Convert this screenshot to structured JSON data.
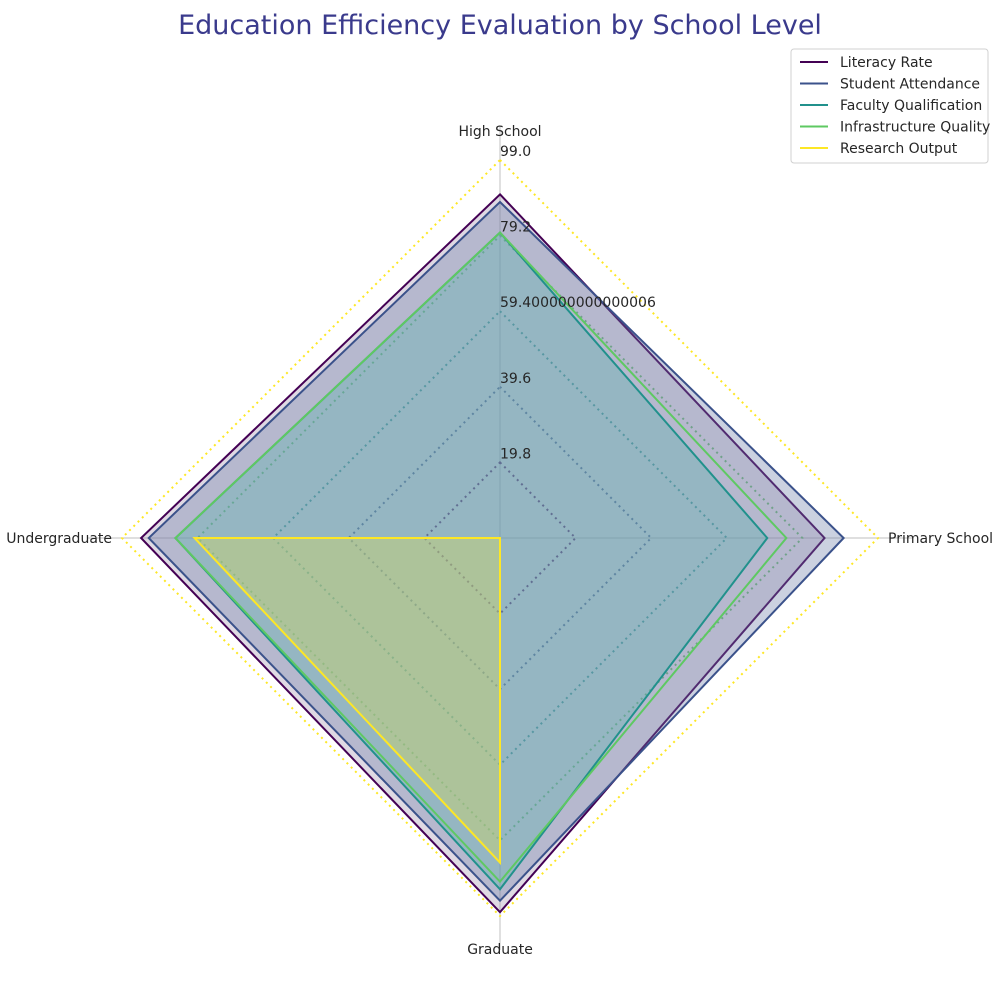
{
  "chart_data": {
    "type": "radar",
    "title": "Education Efficiency Evaluation by School Level",
    "axes": [
      "High School",
      "Primary School",
      "Graduate",
      "Undergraduate"
    ],
    "rlim": [
      0,
      99.0
    ],
    "tick_values": [
      19.8,
      39.6,
      59.4,
      79.2,
      99.0
    ],
    "tick_labels": [
      "19.8",
      "39.6",
      "59.400000000000006",
      "79.2",
      "99.0"
    ],
    "grid": true,
    "legend_position": "top-right",
    "series": [
      {
        "name": "Literacy Rate",
        "color": "#440154",
        "fill": "#a392b0",
        "fill_opacity": 0.35,
        "values": [
          90,
          85,
          98,
          94
        ]
      },
      {
        "name": "Student Attendance",
        "color": "#3b528b",
        "fill": "#6a7ba6",
        "fill_opacity": 0.35,
        "values": [
          88,
          90,
          95,
          92
        ]
      },
      {
        "name": "Faculty Qualification",
        "color": "#21918c",
        "fill": "#5ab3ad",
        "fill_opacity": 0.35,
        "values": [
          80,
          70,
          92,
          85
        ]
      },
      {
        "name": "Infrastructure Quality",
        "color": "#5ec962",
        "fill": null,
        "fill_opacity": 0,
        "values": [
          80,
          75,
          90,
          85
        ]
      },
      {
        "name": "Research Output",
        "color": "#fde725",
        "fill": "#c9d36a",
        "fill_opacity": 0.45,
        "values": [
          0,
          0,
          85,
          80
        ]
      }
    ]
  }
}
